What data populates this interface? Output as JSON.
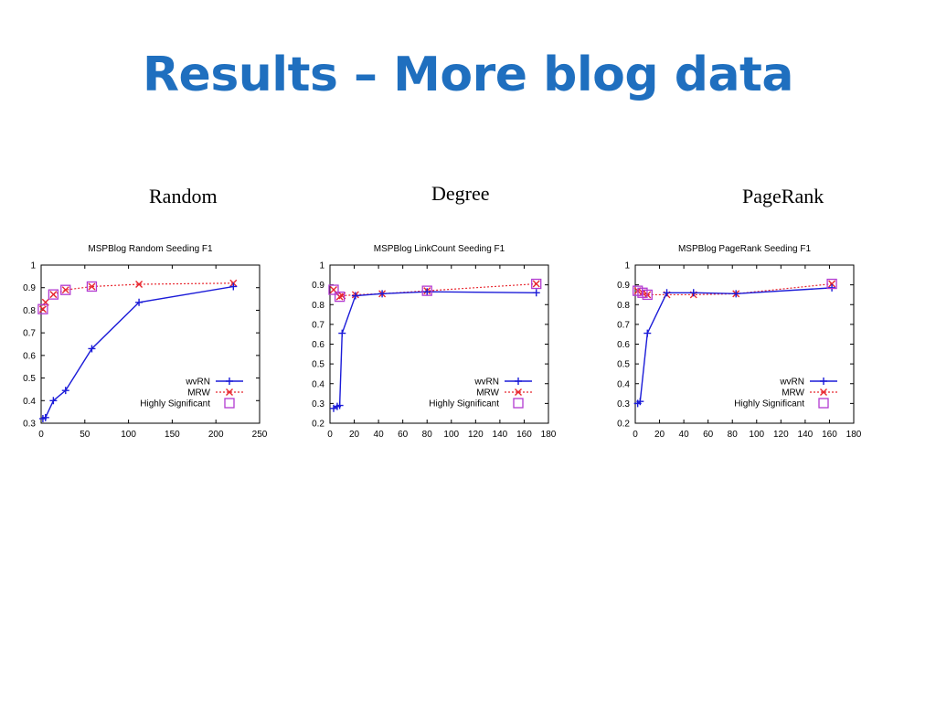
{
  "slide": {
    "title": "Results – More blog data",
    "captions": [
      "Random",
      "Degree",
      "PageRank"
    ]
  },
  "colors": {
    "title": "#1f6fbf",
    "wvRN": "#1b1bd8",
    "MRW": "#e8262e",
    "significant": "#b23ad1"
  },
  "chart_data": [
    {
      "type": "line",
      "title": "MSPBlog Random Seeding F1",
      "xlim": [
        0,
        250
      ],
      "ylim": [
        0.3,
        1
      ],
      "xticks": [
        0,
        50,
        100,
        150,
        200,
        250
      ],
      "yticks": [
        0.3,
        0.4,
        0.5,
        0.6,
        0.7,
        0.8,
        0.9,
        1
      ],
      "legend_position": "bottom-right",
      "series": [
        {
          "name": "wvRN",
          "x": [
            2,
            5,
            14,
            28,
            58,
            112,
            220
          ],
          "y": [
            0.32,
            0.325,
            0.4,
            0.445,
            0.63,
            0.835,
            0.905
          ]
        },
        {
          "name": "MRW",
          "x": [
            2,
            5,
            14,
            28,
            58,
            112,
            220
          ],
          "y": [
            0.805,
            0.835,
            0.87,
            0.89,
            0.905,
            0.915,
            0.92
          ]
        },
        {
          "name": "Highly Significant",
          "x": [
            2,
            14,
            28,
            58
          ],
          "y": [
            0.805,
            0.87,
            0.89,
            0.905
          ]
        }
      ]
    },
    {
      "type": "line",
      "title": "MSPBlog LinkCount Seeding F1",
      "xlim": [
        0,
        180
      ],
      "ylim": [
        0.2,
        1
      ],
      "xticks": [
        0,
        20,
        40,
        60,
        80,
        100,
        120,
        140,
        160,
        180
      ],
      "yticks": [
        0.2,
        0.3,
        0.4,
        0.5,
        0.6,
        0.7,
        0.8,
        0.9,
        1
      ],
      "legend_position": "bottom-right",
      "series": [
        {
          "name": "wvRN",
          "x": [
            3,
            6,
            8,
            10,
            21,
            43,
            80,
            170
          ],
          "y": [
            0.275,
            0.285,
            0.29,
            0.655,
            0.845,
            0.855,
            0.865,
            0.86
          ]
        },
        {
          "name": "MRW",
          "x": [
            3,
            8,
            10,
            21,
            43,
            80,
            170
          ],
          "y": [
            0.875,
            0.84,
            0.845,
            0.85,
            0.855,
            0.87,
            0.905
          ]
        },
        {
          "name": "Highly Significant",
          "x": [
            3,
            8,
            80,
            170
          ],
          "y": [
            0.875,
            0.84,
            0.87,
            0.905
          ]
        }
      ]
    },
    {
      "type": "line",
      "title": "MSPBlog PageRank Seeding F1",
      "xlim": [
        0,
        180
      ],
      "ylim": [
        0.2,
        1
      ],
      "xticks": [
        0,
        20,
        40,
        60,
        80,
        100,
        120,
        140,
        160,
        180
      ],
      "yticks": [
        0.2,
        0.3,
        0.4,
        0.5,
        0.6,
        0.7,
        0.8,
        0.9,
        1
      ],
      "legend_position": "bottom-right",
      "series": [
        {
          "name": "wvRN",
          "x": [
            2,
            4,
            10,
            26,
            48,
            83,
            162
          ],
          "y": [
            0.3,
            0.31,
            0.655,
            0.86,
            0.86,
            0.855,
            0.885
          ]
        },
        {
          "name": "MRW",
          "x": [
            2,
            6,
            10,
            26,
            48,
            83,
            162
          ],
          "y": [
            0.87,
            0.86,
            0.85,
            0.85,
            0.85,
            0.855,
            0.905
          ]
        },
        {
          "name": "Highly Significant",
          "x": [
            2,
            6,
            10,
            162
          ],
          "y": [
            0.87,
            0.86,
            0.85,
            0.905
          ]
        }
      ]
    }
  ]
}
